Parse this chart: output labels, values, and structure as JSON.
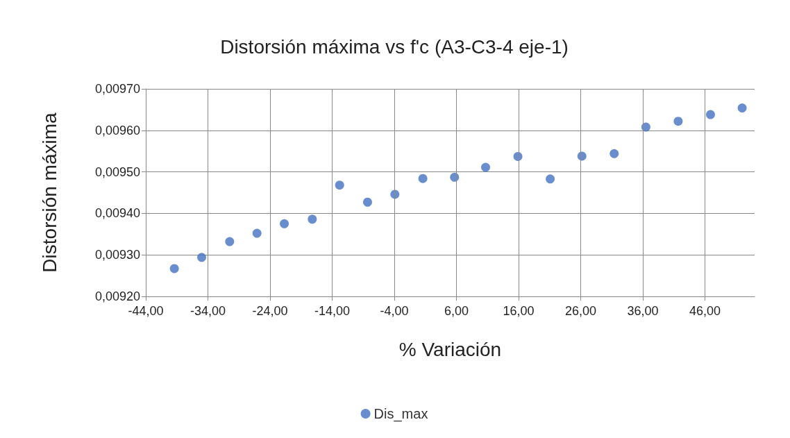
{
  "chart_data": {
    "type": "scatter",
    "title": "Distorsión máxima vs f'c (A3-C3-4 eje-1)",
    "xlabel": "% Variación",
    "ylabel": "Distorsión máxima",
    "x": [
      -39.4,
      -35,
      -30.5,
      -26.1,
      -21.7,
      -17.2,
      -12.8,
      -8.3,
      -3.9,
      0.6,
      5.7,
      10.7,
      15.9,
      21.1,
      26.2,
      31.4,
      36.5,
      41.7,
      46.9,
      52
    ],
    "series": [
      {
        "name": "Dis_max",
        "color": "#4472c4",
        "values": [
          0.009267,
          0.009294,
          0.009332,
          0.009352,
          0.009375,
          0.009386,
          0.009468,
          0.009427,
          0.009446,
          0.009484,
          0.009487,
          0.009511,
          0.009537,
          0.009483,
          0.009538,
          0.009544,
          0.009608,
          0.009622,
          0.009638,
          0.009654
        ]
      }
    ],
    "xlim": [
      -44,
      54
    ],
    "xticks": [
      {
        "value": -44,
        "label": "-44,00"
      },
      {
        "value": -34,
        "label": "-34,00"
      },
      {
        "value": -24,
        "label": "-24,00"
      },
      {
        "value": -14,
        "label": "-14,00"
      },
      {
        "value": -4,
        "label": "-4,00"
      },
      {
        "value": 6,
        "label": "6,00"
      },
      {
        "value": 16,
        "label": "16,00"
      },
      {
        "value": 26,
        "label": "26,00"
      },
      {
        "value": 36,
        "label": "36,00"
      },
      {
        "value": 46,
        "label": "46,00"
      }
    ],
    "ylim": [
      0.0092,
      0.0097
    ],
    "yticks": [
      {
        "value": 0.0092,
        "label": "0,00920"
      },
      {
        "value": 0.0093,
        "label": "0,00930"
      },
      {
        "value": 0.0094,
        "label": "0,00940"
      },
      {
        "value": 0.0095,
        "label": "0,00950"
      },
      {
        "value": 0.0096,
        "label": "0,00960"
      },
      {
        "value": 0.0097,
        "label": "0,00970"
      }
    ],
    "grid": true,
    "legend": "bottom",
    "marker": "circle"
  }
}
